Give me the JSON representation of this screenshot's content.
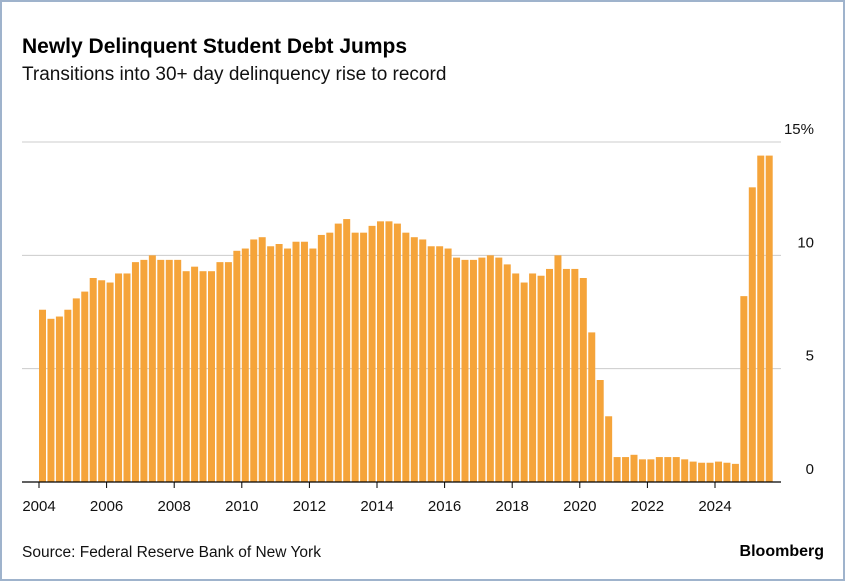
{
  "header": {
    "title": "Newly Delinquent Student Debt Jumps",
    "subtitle": "Transitions into 30+ day delinquency rise to record"
  },
  "footer": {
    "source": "Source: Federal Reserve Bank of New York",
    "brand": "Bloomberg"
  },
  "colors": {
    "bar": "#f5a43a",
    "grid": "#cccccc",
    "axis": "#000000",
    "text": "#111111"
  },
  "chart_data": {
    "type": "bar",
    "title": "Newly Delinquent Student Debt Jumps",
    "subtitle": "Transitions into 30+ day delinquency rise to record",
    "frequency": "quarterly",
    "start": "2004-Q1",
    "ylim": [
      0,
      15
    ],
    "ytick_values": [
      0,
      5,
      10,
      15
    ],
    "ytick_labels": [
      "0",
      "5",
      "10",
      "15%"
    ],
    "y_axis_position": "right",
    "xtick_labels": [
      "2004",
      "2006",
      "2008",
      "2010",
      "2012",
      "2014",
      "2016",
      "2018",
      "2020",
      "2022",
      "2024"
    ],
    "grid": true,
    "legend": "none",
    "categories": [
      "2004-Q1",
      "2004-Q2",
      "2004-Q3",
      "2004-Q4",
      "2005-Q1",
      "2005-Q2",
      "2005-Q3",
      "2005-Q4",
      "2006-Q1",
      "2006-Q2",
      "2006-Q3",
      "2006-Q4",
      "2007-Q1",
      "2007-Q2",
      "2007-Q3",
      "2007-Q4",
      "2008-Q1",
      "2008-Q2",
      "2008-Q3",
      "2008-Q4",
      "2009-Q1",
      "2009-Q2",
      "2009-Q3",
      "2009-Q4",
      "2010-Q1",
      "2010-Q2",
      "2010-Q3",
      "2010-Q4",
      "2011-Q1",
      "2011-Q2",
      "2011-Q3",
      "2011-Q4",
      "2012-Q1",
      "2012-Q2",
      "2012-Q3",
      "2012-Q4",
      "2013-Q1",
      "2013-Q2",
      "2013-Q3",
      "2013-Q4",
      "2014-Q1",
      "2014-Q2",
      "2014-Q3",
      "2014-Q4",
      "2015-Q1",
      "2015-Q2",
      "2015-Q3",
      "2015-Q4",
      "2016-Q1",
      "2016-Q2",
      "2016-Q3",
      "2016-Q4",
      "2017-Q1",
      "2017-Q2",
      "2017-Q3",
      "2017-Q4",
      "2018-Q1",
      "2018-Q2",
      "2018-Q3",
      "2018-Q4",
      "2019-Q1",
      "2019-Q2",
      "2019-Q3",
      "2019-Q4",
      "2020-Q1",
      "2020-Q2",
      "2020-Q3",
      "2020-Q4",
      "2021-Q1",
      "2021-Q2",
      "2021-Q3",
      "2021-Q4",
      "2022-Q1",
      "2022-Q2",
      "2022-Q3",
      "2022-Q4",
      "2023-Q1",
      "2023-Q2",
      "2023-Q3",
      "2023-Q4",
      "2024-Q1",
      "2024-Q2",
      "2024-Q3",
      "2024-Q4",
      "2025-Q1",
      "2025-Q2",
      "2025-Q3"
    ],
    "values": [
      7.6,
      7.2,
      7.3,
      7.6,
      8.1,
      8.4,
      9.0,
      8.9,
      8.8,
      9.2,
      9.2,
      9.7,
      9.8,
      10.0,
      9.8,
      9.8,
      9.8,
      9.3,
      9.5,
      9.3,
      9.3,
      9.7,
      9.7,
      10.2,
      10.3,
      10.7,
      10.8,
      10.4,
      10.5,
      10.3,
      10.6,
      10.6,
      10.3,
      10.9,
      11.0,
      11.4,
      11.6,
      11.0,
      11.0,
      11.3,
      11.5,
      11.5,
      11.4,
      11.0,
      10.8,
      10.7,
      10.4,
      10.4,
      10.3,
      9.9,
      9.8,
      9.8,
      9.9,
      10.0,
      9.9,
      9.6,
      9.2,
      8.8,
      9.2,
      9.1,
      9.4,
      10.0,
      9.4,
      9.4,
      9.0,
      6.6,
      4.5,
      2.9,
      1.1,
      1.1,
      1.2,
      1.0,
      1.0,
      1.1,
      1.1,
      1.1,
      1.0,
      0.9,
      0.85,
      0.85,
      0.9,
      0.85,
      0.8,
      8.2,
      13.0,
      14.4,
      14.4
    ]
  }
}
